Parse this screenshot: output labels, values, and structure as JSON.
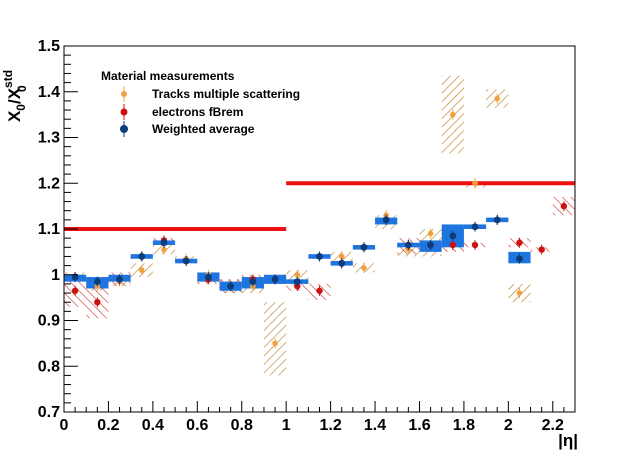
{
  "chart_data": {
    "type": "scatter",
    "xlabel": "|η|",
    "ylabel_main": "X",
    "ylabel_sub0": "0",
    "ylabel_slash": "/X",
    "ylabel_sup": "std",
    "ylabel_sub1": "0",
    "xlim": [
      0,
      2.3
    ],
    "ylim": [
      0.7,
      1.5
    ],
    "x_ticks": [
      0,
      0.2,
      0.4,
      0.6,
      0.8,
      1,
      1.2,
      1.4,
      1.6,
      1.8,
      2,
      2.2
    ],
    "x_tick_labels": [
      "0",
      "0.2",
      "0.4",
      "0.6",
      "0.8",
      "1",
      "1.2",
      "1.4",
      "1.6",
      "1.8",
      "2",
      "2.2"
    ],
    "y_ticks": [
      0.7,
      0.8,
      0.9,
      1.0,
      1.1,
      1.2,
      1.3,
      1.4,
      1.5
    ],
    "y_tick_labels": [
      "0.7",
      "0.8",
      "0.9",
      "1",
      "1.1",
      "1.2",
      "1.3",
      "1.4",
      "1.5"
    ],
    "legend": {
      "title": "Material measurements",
      "placement": "top-left",
      "entries": [
        "Tracks multiple scattering",
        "electrons fBrem",
        "Weighted average"
      ]
    },
    "colors": {
      "tracks": "#f0a040",
      "tracks_band": "#b07a10",
      "electrons": "#cc1111",
      "electrons_band": "#d02020",
      "weighted": "#0a3d7a",
      "weighted_band": "#1f75e0",
      "reference": "#ee1111"
    },
    "reference_lines": [
      {
        "x": [
          0,
          1.0
        ],
        "y": 1.1
      },
      {
        "x": [
          1.0,
          2.3
        ],
        "y": 1.2
      }
    ],
    "series": [
      {
        "name": "Tracks multiple scattering",
        "points": [
          {
            "x": 0.05,
            "y": 0.995,
            "band": [
              0.985,
              1.005
            ]
          },
          {
            "x": 0.15,
            "y": 0.975,
            "band": [
              0.965,
              0.985
            ]
          },
          {
            "x": 0.25,
            "y": 0.985,
            "band": [
              0.975,
              0.995
            ]
          },
          {
            "x": 0.35,
            "y": 1.01,
            "band": [
              0.995,
              1.025
            ]
          },
          {
            "x": 0.45,
            "y": 1.055,
            "band": [
              1.045,
              1.065
            ]
          },
          {
            "x": 0.55,
            "y": 1.035,
            "band": [
              1.025,
              1.04
            ]
          },
          {
            "x": 0.65,
            "y": 1.0,
            "band": [
              0.985,
              1.005
            ]
          },
          {
            "x": 0.75,
            "y": 0.975,
            "band": [
              0.96,
              0.99
            ]
          },
          {
            "x": 0.85,
            "y": 0.975,
            "band": [
              0.96,
              0.99
            ]
          },
          {
            "x": 0.95,
            "y": 0.85,
            "band": [
              0.78,
              0.94
            ]
          },
          {
            "x": 1.05,
            "y": 1.0,
            "band": [
              0.99,
              1.01
            ]
          },
          {
            "x": 1.25,
            "y": 1.04,
            "band": [
              1.02,
              1.05
            ]
          },
          {
            "x": 1.35,
            "y": 1.015,
            "band": [
              1.005,
              1.025
            ]
          },
          {
            "x": 1.45,
            "y": 1.13,
            "band": [
              1.1,
              1.13
            ]
          },
          {
            "x": 1.55,
            "y": 1.055,
            "band": [
              1.04,
              1.07
            ]
          },
          {
            "x": 1.65,
            "y": 1.09,
            "band": [
              1.04,
              1.1
            ]
          },
          {
            "x": 1.75,
            "y": 1.35,
            "band": [
              1.265,
              1.435
            ]
          },
          {
            "x": 1.85,
            "y": 1.2,
            "band": [
              1.19,
              1.2
            ]
          },
          {
            "x": 1.95,
            "y": 1.385,
            "band": [
              1.365,
              1.405
            ]
          },
          {
            "x": 2.05,
            "y": 0.96,
            "band": [
              0.94,
              0.98
            ]
          }
        ]
      },
      {
        "name": "electrons fBrem",
        "points": [
          {
            "x": 0.05,
            "y": 0.965,
            "band": [
              0.93,
              0.99
            ]
          },
          {
            "x": 0.15,
            "y": 0.94,
            "band": [
              0.905,
              0.99
            ]
          },
          {
            "x": 0.25,
            "y": 0.99,
            "band": [
              0.975,
              1.005
            ]
          },
          {
            "x": 0.35,
            "y": 1.04,
            "band": [
              1.035,
              1.045
            ]
          },
          {
            "x": 0.45,
            "y": 1.075,
            "band": [
              1.07,
              1.08
            ]
          },
          {
            "x": 0.55,
            "y": 1.03,
            "band": [
              1.025,
              1.035
            ]
          },
          {
            "x": 0.65,
            "y": 0.99,
            "band": [
              0.98,
              1.0
            ]
          },
          {
            "x": 0.75,
            "y": 0.975,
            "band": [
              0.96,
              0.99
            ]
          },
          {
            "x": 0.85,
            "y": 0.99,
            "band": [
              0.975,
              1.0
            ]
          },
          {
            "x": 0.95,
            "y": 0.99,
            "band": [
              0.98,
              1.0
            ]
          },
          {
            "x": 1.05,
            "y": 0.975,
            "band": [
              0.965,
              0.985
            ]
          },
          {
            "x": 1.15,
            "y": 0.965,
            "band": [
              0.945,
              0.98
            ]
          },
          {
            "x": 1.25,
            "y": 1.025,
            "band": [
              1.02,
              1.03
            ]
          },
          {
            "x": 1.35,
            "y": 1.06,
            "band": [
              1.055,
              1.065
            ]
          },
          {
            "x": 1.45,
            "y": 1.12,
            "band": [
              1.115,
              1.125
            ]
          },
          {
            "x": 1.55,
            "y": 1.065,
            "band": [
              1.045,
              1.08
            ]
          },
          {
            "x": 1.65,
            "y": 1.065,
            "band": [
              1.055,
              1.075
            ]
          },
          {
            "x": 1.75,
            "y": 1.065,
            "band": [
              1.05,
              1.075
            ]
          },
          {
            "x": 1.85,
            "y": 1.065,
            "band": [
              1.06,
              1.07
            ]
          },
          {
            "x": 1.95,
            "y": 1.12,
            "band": [
              1.115,
              1.125
            ]
          },
          {
            "x": 2.05,
            "y": 1.07,
            "band": [
              1.06,
              1.08
            ]
          },
          {
            "x": 2.15,
            "y": 1.055,
            "band": [
              1.05,
              1.06
            ]
          },
          {
            "x": 2.25,
            "y": 1.15,
            "band": [
              1.13,
              1.17
            ]
          }
        ]
      },
      {
        "name": "Weighted average",
        "points": [
          {
            "x": 0.05,
            "y": 0.995,
            "band": [
              0.985,
              1.0
            ]
          },
          {
            "x": 0.15,
            "y": 0.985,
            "band": [
              0.97,
              0.995
            ]
          },
          {
            "x": 0.25,
            "y": 0.99,
            "band": [
              0.985,
              1.0
            ]
          },
          {
            "x": 0.35,
            "y": 1.04,
            "band": [
              1.035,
              1.045
            ]
          },
          {
            "x": 0.45,
            "y": 1.07,
            "band": [
              1.065,
              1.075
            ]
          },
          {
            "x": 0.55,
            "y": 1.03,
            "band": [
              1.025,
              1.035
            ]
          },
          {
            "x": 0.65,
            "y": 0.995,
            "band": [
              0.985,
              1.005
            ]
          },
          {
            "x": 0.75,
            "y": 0.975,
            "band": [
              0.965,
              0.985
            ]
          },
          {
            "x": 0.85,
            "y": 0.985,
            "band": [
              0.97,
              0.995
            ]
          },
          {
            "x": 0.95,
            "y": 0.99,
            "band": [
              0.98,
              1.0
            ]
          },
          {
            "x": 1.05,
            "y": 0.985,
            "band": [
              0.98,
              0.99
            ]
          },
          {
            "x": 1.15,
            "y": 1.04,
            "band": [
              1.035,
              1.045
            ]
          },
          {
            "x": 1.25,
            "y": 1.025,
            "band": [
              1.02,
              1.03
            ]
          },
          {
            "x": 1.35,
            "y": 1.06,
            "band": [
              1.055,
              1.065
            ]
          },
          {
            "x": 1.45,
            "y": 1.12,
            "band": [
              1.11,
              1.125
            ]
          },
          {
            "x": 1.55,
            "y": 1.065,
            "band": [
              1.06,
              1.07
            ]
          },
          {
            "x": 1.65,
            "y": 1.065,
            "band": [
              1.05,
              1.075
            ]
          },
          {
            "x": 1.75,
            "y": 1.085,
            "band": [
              1.06,
              1.11
            ]
          },
          {
            "x": 1.85,
            "y": 1.105,
            "band": [
              1.1,
              1.11
            ]
          },
          {
            "x": 1.95,
            "y": 1.12,
            "band": [
              1.115,
              1.125
            ]
          },
          {
            "x": 2.05,
            "y": 1.035,
            "band": [
              1.025,
              1.05
            ]
          }
        ]
      }
    ]
  }
}
